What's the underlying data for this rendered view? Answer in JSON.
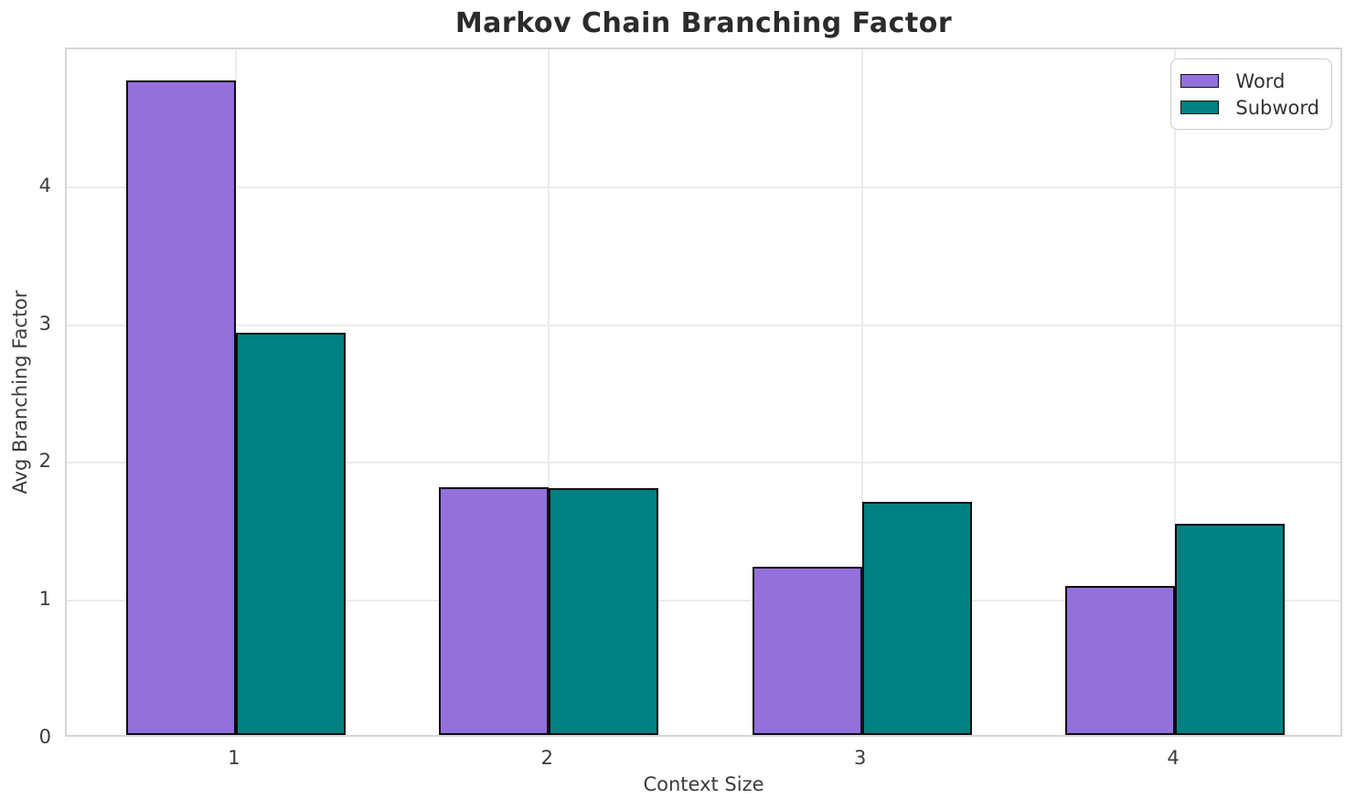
{
  "chart_data": {
    "type": "bar",
    "title": "Markov Chain Branching Factor",
    "xlabel": "Context Size",
    "ylabel": "Avg Branching Factor",
    "categories": [
      "1",
      "2",
      "3",
      "4"
    ],
    "series": [
      {
        "name": "Word",
        "color": "#9370db",
        "values": [
          4.75,
          1.8,
          1.22,
          1.08
        ]
      },
      {
        "name": "Subword",
        "color": "#008080",
        "values": [
          2.92,
          1.79,
          1.69,
          1.53
        ]
      }
    ],
    "bar_width": 0.35,
    "ylim": [
      0,
      5.0
    ],
    "xlim": [
      0.46,
      4.54
    ],
    "yticks": [
      0,
      1,
      2,
      3,
      4
    ],
    "grid": true,
    "legend_position": "upper right",
    "colors": {
      "bar_edge": "#0d0d0d",
      "grid_line": "#ececec",
      "spine": "#d6d6d6",
      "title_text": "#2b2b2b",
      "tick_text": "#3b3b3b",
      "legend_border": "#cccccc",
      "legend_bg": "#ffffff"
    }
  }
}
